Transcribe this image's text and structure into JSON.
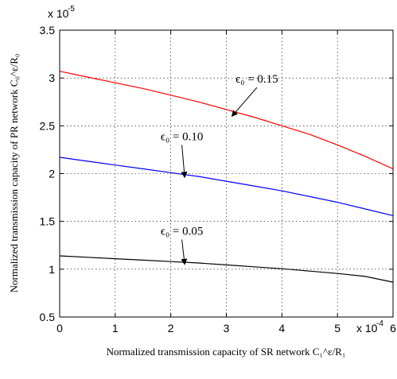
{
  "chart_data": {
    "type": "line",
    "xlabel": "Normalized transmission capacity of SR network C₁^ε/R₁",
    "ylabel": "Normalized transmission capacity of PR network C₀^ε/R₀",
    "x_multiplier": "x 10",
    "x_exponent": "-4",
    "y_multiplier": "x 10",
    "y_exponent": "-5",
    "xlim": [
      0,
      6
    ],
    "ylim": [
      0.5,
      3.5
    ],
    "x_ticks": [
      "0",
      "1",
      "2",
      "3",
      "4",
      "5",
      "6"
    ],
    "y_ticks": [
      "0.5",
      "1",
      "1.5",
      "2",
      "2.5",
      "3",
      "3.5"
    ],
    "grid": true,
    "series": [
      {
        "color": "#ff0000",
        "x": [
          0,
          0.5,
          1,
          1.5,
          2,
          2.5,
          3,
          3.5,
          4,
          4.5,
          5,
          5.5,
          6
        ],
        "y": [
          3.07,
          3.01,
          2.95,
          2.89,
          2.82,
          2.75,
          2.67,
          2.59,
          2.5,
          2.41,
          2.3,
          2.18,
          2.05
        ]
      },
      {
        "color": "#0000ff",
        "x": [
          0,
          0.5,
          1,
          1.5,
          2,
          2.5,
          3,
          3.5,
          4,
          4.5,
          5,
          5.5,
          6
        ],
        "y": [
          2.17,
          2.13,
          2.09,
          2.05,
          2.01,
          1.97,
          1.92,
          1.87,
          1.82,
          1.76,
          1.7,
          1.63,
          1.56
        ]
      },
      {
        "color": "#000000",
        "x": [
          0,
          0.5,
          1,
          1.5,
          2,
          2.5,
          3,
          3.5,
          4,
          4.5,
          5,
          5.5,
          6
        ],
        "y": [
          1.14,
          1.125,
          1.11,
          1.095,
          1.08,
          1.065,
          1.045,
          1.025,
          1.005,
          0.98,
          0.955,
          0.925,
          0.865
        ]
      }
    ],
    "annotations": [
      {
        "text": "ϵ₀ = 0.15",
        "text_xy": [
          3.55,
          2.95
        ],
        "arrow_to": [
          3.1,
          2.6
        ]
      },
      {
        "text": "ϵ₀ = 0.10",
        "text_xy": [
          2.2,
          2.35
        ],
        "arrow_to": [
          2.25,
          1.96
        ]
      },
      {
        "text": "ϵ₀ = 0.05",
        "text_xy": [
          2.2,
          1.36
        ],
        "arrow_to": [
          2.25,
          1.05
        ]
      }
    ]
  }
}
